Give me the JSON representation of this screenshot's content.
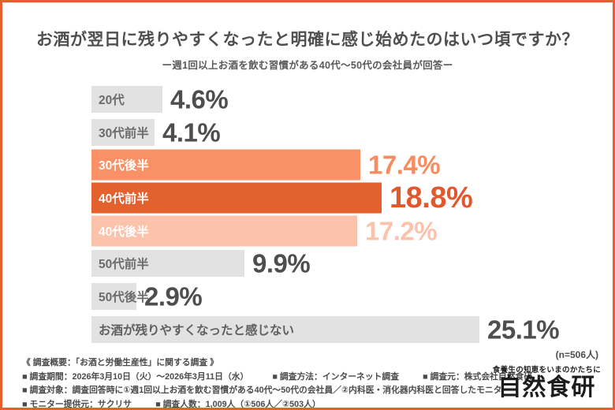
{
  "colors": {
    "border": "#e2612c",
    "title_text": "#4f4f4f",
    "gray_bar": "#e2e2e2",
    "gray_label": "#6b6b6b",
    "dark_value": "#4e4e4e",
    "orange_mid": "#fa9065",
    "orange_dark": "#e2612e",
    "orange_light": "#fdc2ab",
    "white": "#ffffff"
  },
  "header": {
    "title": "お酒が翌日に残りやすくなったと明確に感じ始めたのはいつ頃ですか？",
    "subtitle": "ー週1回以上お酒を飲む習慣がある40代〜50代の会社員が回答ー"
  },
  "chart_data": {
    "type": "bar",
    "orientation": "horizontal",
    "unit": "%",
    "xlim": [
      0,
      27
    ],
    "grid": false,
    "legend": false,
    "title": "お酒が翌日に残りやすくなったと明確に感じ始めたのはいつ頃ですか？",
    "n_note": "(n=506人)",
    "categories": [
      "20代",
      "30代前半",
      "30代後半",
      "40代前半",
      "40代後半",
      "50代前半",
      "50代後半",
      "お酒が残りやすくなったと感じない"
    ],
    "values": [
      4.6,
      4.1,
      17.4,
      18.8,
      17.2,
      9.9,
      2.9,
      25.1
    ],
    "rows": [
      {
        "label": "20代",
        "value": 4.6,
        "value_label": "4.6%",
        "bar_color": "#e2e2e2",
        "label_color": "#6b6b6b",
        "value_color": "#4e4e4e",
        "emphasis": false,
        "max": false
      },
      {
        "label": "30代前半",
        "value": 4.1,
        "value_label": "4.1%",
        "bar_color": "#e2e2e2",
        "label_color": "#6b6b6b",
        "value_color": "#4e4e4e",
        "emphasis": false,
        "max": false
      },
      {
        "label": "30代後半",
        "value": 17.4,
        "value_label": "17.4%",
        "bar_color": "#fa9065",
        "label_color": "#ffffff",
        "value_color": "#f98b5e",
        "emphasis": true,
        "max": false
      },
      {
        "label": "40代前半",
        "value": 18.8,
        "value_label": "18.8%",
        "bar_color": "#e2612e",
        "label_color": "#ffffff",
        "value_color": "#e2572b",
        "emphasis": true,
        "max": true
      },
      {
        "label": "40代後半",
        "value": 17.2,
        "value_label": "17.2%",
        "bar_color": "#fdc2ab",
        "label_color": "#ffffff",
        "value_color": "#fdc2ab",
        "emphasis": true,
        "max": false
      },
      {
        "label": "50代前半",
        "value": 9.9,
        "value_label": "9.9%",
        "bar_color": "#e2e2e2",
        "label_color": "#6b6b6b",
        "value_color": "#4e4e4e",
        "emphasis": false,
        "max": false
      },
      {
        "label": "50代後半",
        "value": 2.9,
        "value_label": "2.9%",
        "bar_color": "#e2e2e2",
        "label_color": "#6b6b6b",
        "value_color": "#4e4e4e",
        "emphasis": false,
        "max": false
      },
      {
        "label": "お酒が残りやすくなったと感じない",
        "value": 25.1,
        "value_label": "25.1%",
        "bar_color": "#e2e2e2",
        "label_color": "#5f5f5f",
        "value_color": "#4e4e4e",
        "emphasis": false,
        "max": false
      }
    ]
  },
  "footer": {
    "lines": [
      [
        "《 調査概要：「お酒と労働生産性」に関する調査 》"
      ],
      [
        "■ 調査期間：2026年3月10日（火）〜2026年3月11日（水）",
        "■ 調査方法：インターネット調査",
        "■ 調査元：株式会社自然食研"
      ],
      [
        "■ 調査対象：調査回答時に①週1回以上お酒を飲む習慣がある40代〜50代の会社員／②内科医・消化器内科医と回答したモニター"
      ],
      [
        "■ モニター提供元：サクリサ",
        "■ 調査人数：1,009人（①506人／②503人）"
      ]
    ],
    "logo": {
      "tagline": "食養生の知恵をいまのかたちに",
      "name": "自然食研"
    }
  }
}
